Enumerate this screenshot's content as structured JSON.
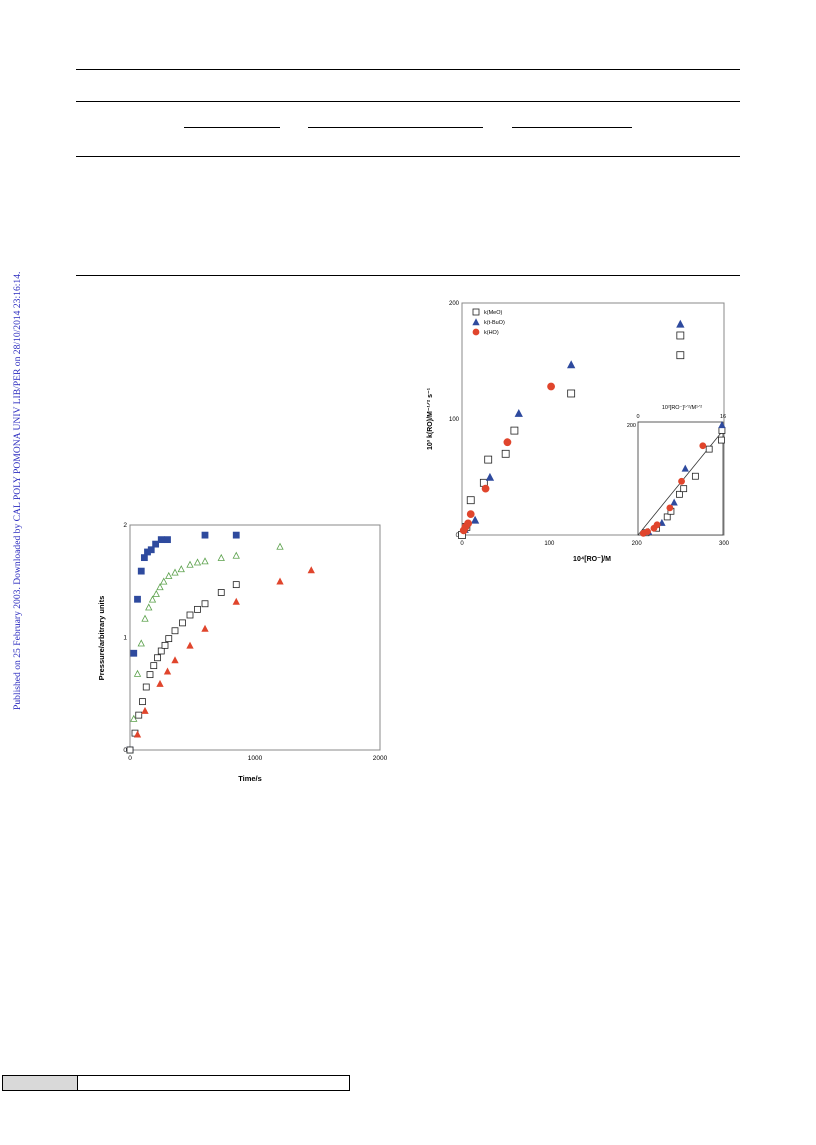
{
  "side_note": "Published on 25 February 2003. Downloaded by CAL POLY POMONA UNIV LIB/PER on 28/10/2014 23:16:14.",
  "colors": {
    "blue": "#2e4a9e",
    "green": "#5aa04a",
    "red": "#e0452c",
    "black": "#222222",
    "side_note": "#2a2abf"
  },
  "chart_data": [
    {
      "type": "scatter",
      "title": "",
      "xlabel": "Time/s",
      "ylabel": "Pressure/arbitrary units",
      "xlim": [
        0,
        2000
      ],
      "ylim": [
        0,
        2
      ],
      "xticks": [
        "0",
        "1000",
        "2000"
      ],
      "yticks": [
        "0",
        "1",
        "2"
      ],
      "grid": false,
      "series": [
        {
          "marker": "filled-square",
          "color": "#2e4a9e",
          "x": [
            0,
            30,
            60,
            90,
            115,
            140,
            170,
            205,
            250,
            300,
            600,
            850
          ],
          "y": [
            0,
            0.86,
            1.34,
            1.59,
            1.71,
            1.76,
            1.78,
            1.83,
            1.87,
            1.87,
            1.91,
            1.91
          ]
        },
        {
          "marker": "open-triangle",
          "color": "#5aa04a",
          "x": [
            0,
            30,
            60,
            90,
            120,
            150,
            180,
            210,
            240,
            270,
            310,
            360,
            410,
            480,
            540,
            600,
            730,
            850,
            1200
          ],
          "y": [
            0,
            0.28,
            0.68,
            0.95,
            1.17,
            1.27,
            1.34,
            1.39,
            1.45,
            1.5,
            1.55,
            1.58,
            1.61,
            1.65,
            1.67,
            1.68,
            1.71,
            1.73,
            1.81
          ]
        },
        {
          "marker": "open-square",
          "color": "#222222",
          "x": [
            0,
            40,
            70,
            100,
            130,
            160,
            190,
            220,
            250,
            280,
            310,
            360,
            420,
            480,
            540,
            600,
            730,
            850
          ],
          "y": [
            0,
            0.15,
            0.31,
            0.43,
            0.56,
            0.67,
            0.75,
            0.82,
            0.88,
            0.93,
            0.99,
            1.06,
            1.13,
            1.2,
            1.25,
            1.3,
            1.4,
            1.47
          ]
        },
        {
          "marker": "filled-triangle",
          "color": "#e0452c",
          "x": [
            60,
            120,
            240,
            300,
            360,
            480,
            600,
            850,
            1200,
            1450
          ],
          "y": [
            0.14,
            0.35,
            0.59,
            0.7,
            0.8,
            0.93,
            1.08,
            1.32,
            1.5,
            1.6
          ]
        }
      ]
    },
    {
      "type": "scatter",
      "title": "",
      "xlabel": "10⁴[RO⁻]/M",
      "ylabel": "10³ k(RO)/M⁻¹ᐟ² s⁻¹",
      "xlim": [
        0,
        300
      ],
      "ylim": [
        0,
        200
      ],
      "xticks": [
        "0",
        "100",
        "200",
        "300"
      ],
      "yticks": [
        "0",
        "100",
        "200"
      ],
      "grid": false,
      "legend_position": "top-left",
      "series": [
        {
          "name": "k(MeO)",
          "marker": "open-square",
          "color": "#222222",
          "x": [
            0,
            5,
            10,
            25,
            30,
            50,
            60,
            125,
            250,
            250
          ],
          "y": [
            0,
            7,
            30,
            45,
            65,
            70,
            90,
            122,
            155,
            172
          ]
        },
        {
          "name": "k(t-BuO)",
          "marker": "filled-triangle",
          "color": "#2e4a9e",
          "x": [
            3,
            15,
            32,
            65,
            125,
            250
          ],
          "y": [
            5,
            13,
            50,
            105,
            147,
            182
          ]
        },
        {
          "name": "k(HO)",
          "marker": "filled-circle",
          "color": "#e0452c",
          "x": [
            2,
            4,
            7,
            10,
            27,
            52,
            102
          ],
          "y": [
            4,
            7,
            10,
            18,
            40,
            80,
            128
          ]
        }
      ],
      "inset": {
        "xlabel": "10²[RO⁻]¹ᐟ²/M¹ᐟ²",
        "xticks": [
          "0",
          "16"
        ],
        "yticks": [
          "200"
        ],
        "xlim": [
          0,
          16
        ],
        "ylim": [
          0,
          200
        ],
        "fit_line": [
          [
            0,
            0
          ],
          [
            16,
            185
          ]
        ],
        "series": [
          {
            "marker": "open-square",
            "color": "#222222",
            "x": [
              1.5,
              3.5,
              5.5,
              6.2,
              7.8,
              8.6,
              10.8,
              13.4,
              15.7,
              15.8
            ],
            "y": [
              4,
              12,
              32,
              42,
              72,
              82,
              104,
              152,
              168,
              185
            ]
          },
          {
            "marker": "filled-triangle",
            "color": "#2e4a9e",
            "x": [
              2.0,
              4.5,
              6.8,
              8.9,
              15.8
            ],
            "y": [
              6,
              22,
              58,
              118,
              195
            ]
          },
          {
            "marker": "filled-circle",
            "color": "#e0452c",
            "x": [
              1.0,
              1.8,
              3.0,
              3.6,
              6.0,
              8.2,
              12.2
            ],
            "y": [
              3,
              6,
              12,
              18,
              48,
              95,
              158
            ]
          }
        ]
      }
    }
  ]
}
